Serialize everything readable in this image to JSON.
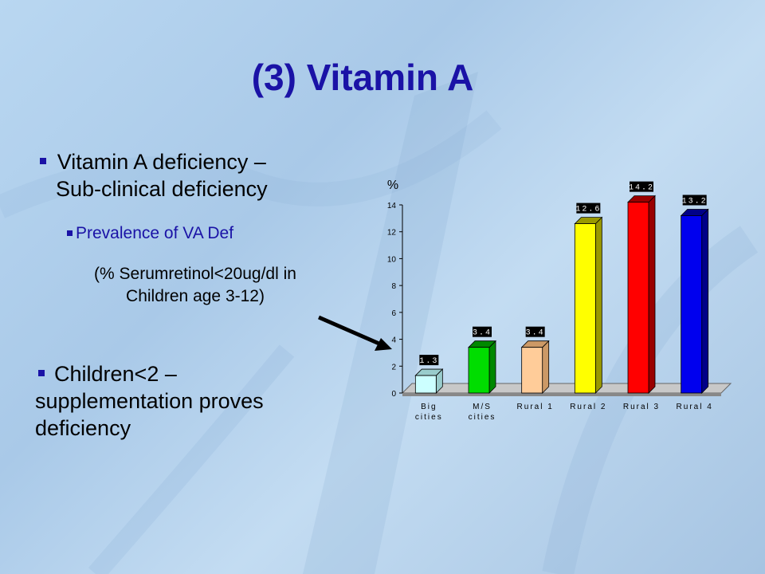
{
  "slide": {
    "title": "(3) Vitamin A",
    "bullet1_line1": "Vitamin A deficiency –",
    "bullet1_line2": "Sub-clinical deficiency",
    "sub_bullet": "Prevalence of  VA Def",
    "note_line1": "(% Serumretinol<20ug/dl in",
    "note_line2": "Children age 3-12)",
    "bullet2_line1": "Children<2 –",
    "bullet2_line2": "supplementation proves",
    "bullet2_line3": "deficiency"
  },
  "chart_data": {
    "type": "bar",
    "ylabel": "%",
    "ylim": [
      0,
      14
    ],
    "yticks": [
      0,
      2,
      4,
      6,
      8,
      10,
      12,
      14
    ],
    "categories": [
      [
        "Big",
        "cities"
      ],
      [
        "M/S",
        "cities"
      ],
      [
        "Rural 1"
      ],
      [
        "Rural 2"
      ],
      [
        "Rural 3"
      ],
      [
        "Rural 4"
      ]
    ],
    "values": [
      1.3,
      3.4,
      3.4,
      12.6,
      14.2,
      13.2
    ],
    "value_labels": [
      "1.3",
      "3.4",
      "3.4",
      "12.6",
      "14.2",
      "13.2"
    ],
    "colors": [
      "#ccffff",
      "#00dd00",
      "#ffcc99",
      "#ffff00",
      "#ff0000",
      "#0000ee"
    ],
    "side_colors": [
      "#99cccc",
      "#008800",
      "#cc9966",
      "#999900",
      "#990000",
      "#000088"
    ]
  }
}
